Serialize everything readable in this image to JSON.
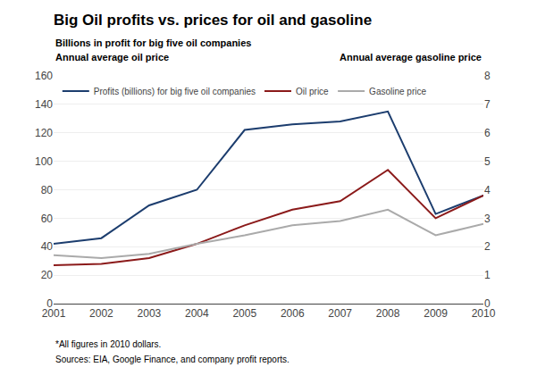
{
  "chart_data": {
    "type": "line",
    "title": "Big Oil profits vs. prices for oil and gasoline",
    "ylabel": [
      "Billions in profit for big five oil companies",
      "Annual average oil price"
    ],
    "y2label": "Annual average gasoline price",
    "annotations": [
      "*All figures in 2010 dollars.",
      "Sources: EIA, Google Finance, and company profit reports."
    ],
    "x": [
      2001,
      2002,
      2003,
      2004,
      2005,
      2006,
      2007,
      2008,
      2009,
      2010
    ],
    "series": [
      {
        "name": "Profits (billions) for big five oil companies",
        "color": "#1c3d6e",
        "values": [
          42,
          46,
          69,
          80,
          122,
          126,
          128,
          135,
          63,
          76
        ]
      },
      {
        "name": "Oil price",
        "color": "#8b1a1a",
        "values": [
          27,
          28,
          32,
          42,
          55,
          66,
          72,
          94,
          60,
          76
        ]
      },
      {
        "name": "Gasoline price",
        "color": "#aaaaaa",
        "axis": "y2",
        "values": [
          1.7,
          1.6,
          1.75,
          2.1,
          2.4,
          2.75,
          2.9,
          3.3,
          2.4,
          2.8
        ]
      }
    ],
    "xlim": [
      2001,
      2010
    ],
    "xticks": [
      2001,
      2002,
      2003,
      2004,
      2005,
      2006,
      2007,
      2008,
      2009,
      2010
    ],
    "ylim": [
      0,
      160
    ],
    "yticks": [
      0,
      20,
      40,
      60,
      80,
      100,
      120,
      140,
      160
    ],
    "y2lim": [
      0,
      8
    ],
    "y2ticks": [
      0,
      1,
      2,
      3,
      4,
      5,
      6,
      7,
      8
    ],
    "grid": true,
    "legend": "upper left"
  }
}
